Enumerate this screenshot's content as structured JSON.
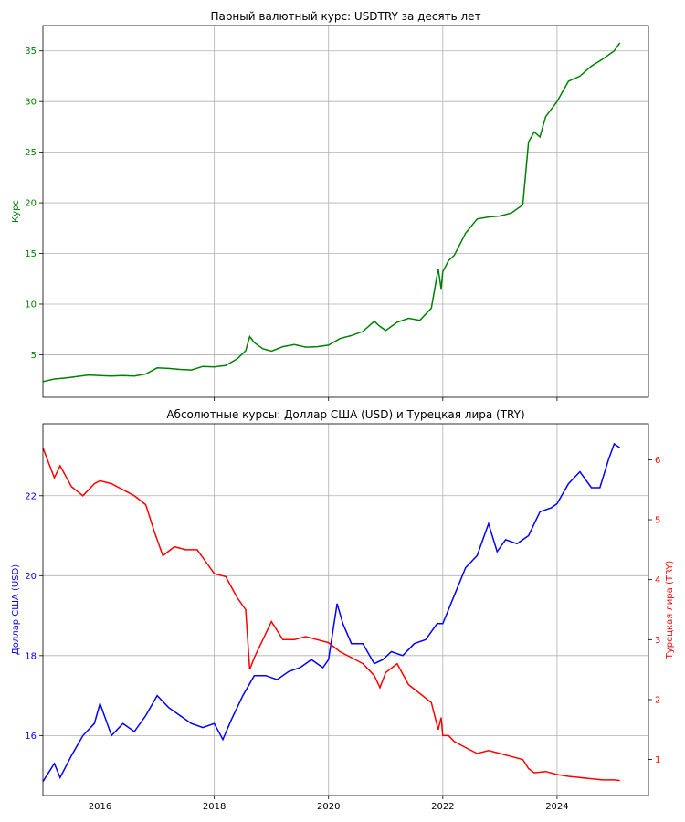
{
  "chart_data": [
    {
      "type": "line",
      "title": "Парный валютный курс: USDTRY за десять лет",
      "ylabel": "Курс",
      "xlim": [
        2015.0,
        2025.6
      ],
      "ylim": [
        0.8,
        37.5
      ],
      "yticks": [
        5,
        10,
        15,
        20,
        25,
        30,
        35
      ],
      "xticks": [
        2016,
        2018,
        2020,
        2022,
        2024
      ],
      "grid": true,
      "colors": {
        "line": "#008000",
        "ylabel": "#008000",
        "yticks": "#008000"
      },
      "series": [
        {
          "x": [
            2015.0,
            2015.2,
            2015.4,
            2015.6,
            2015.8,
            2016.0,
            2016.2,
            2016.4,
            2016.6,
            2016.8,
            2017.0,
            2017.2,
            2017.4,
            2017.6,
            2017.8,
            2018.0,
            2018.2,
            2018.4,
            2018.55,
            2018.62,
            2018.7,
            2018.85,
            2019.0,
            2019.2,
            2019.4,
            2019.6,
            2019.8,
            2020.0,
            2020.2,
            2020.4,
            2020.6,
            2020.8,
            2020.9,
            2021.0,
            2021.2,
            2021.4,
            2021.6,
            2021.8,
            2021.92,
            2021.97,
            2022.0,
            2022.1,
            2022.2,
            2022.4,
            2022.6,
            2022.8,
            2023.0,
            2023.2,
            2023.4,
            2023.5,
            2023.6,
            2023.7,
            2023.8,
            2024.0,
            2024.2,
            2024.4,
            2024.6,
            2024.8,
            2025.0,
            2025.1
          ],
          "y": [
            2.35,
            2.6,
            2.7,
            2.85,
            3.0,
            2.95,
            2.9,
            2.95,
            2.9,
            3.1,
            3.7,
            3.65,
            3.55,
            3.5,
            3.85,
            3.8,
            3.95,
            4.6,
            5.4,
            6.8,
            6.2,
            5.6,
            5.35,
            5.8,
            6.0,
            5.75,
            5.8,
            5.95,
            6.6,
            6.9,
            7.3,
            8.3,
            7.8,
            7.4,
            8.2,
            8.6,
            8.4,
            9.6,
            13.5,
            11.5,
            13.2,
            14.3,
            14.8,
            17.0,
            18.4,
            18.6,
            18.7,
            19.0,
            19.8,
            26.0,
            27.0,
            26.5,
            28.5,
            30.0,
            32.0,
            32.5,
            33.5,
            34.2,
            35.0,
            35.8
          ]
        }
      ]
    },
    {
      "type": "line",
      "title": "Абсолютные курсы: Доллар США (USD) и Турецкая лира (TRY)",
      "ylabel": "Доллар США (USD)",
      "ylabel_right": "Турецкая лира (TRY)",
      "xlim": [
        2015.0,
        2025.6
      ],
      "ylim": [
        14.5,
        23.8
      ],
      "ylim_right": [
        0.4,
        6.6
      ],
      "yticks": [
        16,
        18,
        20,
        22
      ],
      "yticks_right": [
        1,
        2,
        3,
        4,
        5,
        6
      ],
      "xticks": [
        2016,
        2018,
        2020,
        2022,
        2024
      ],
      "grid": true,
      "colors": {
        "usd": "#0000ff",
        "try": "#ff0000"
      },
      "series": [
        {
          "axis": "left",
          "x": [
            2015.0,
            2015.2,
            2015.3,
            2015.5,
            2015.7,
            2015.9,
            2016.0,
            2016.2,
            2016.4,
            2016.6,
            2016.8,
            2017.0,
            2017.2,
            2017.4,
            2017.6,
            2017.8,
            2018.0,
            2018.15,
            2018.3,
            2018.5,
            2018.7,
            2018.9,
            2019.1,
            2019.3,
            2019.5,
            2019.7,
            2019.9,
            2020.0,
            2020.15,
            2020.25,
            2020.4,
            2020.6,
            2020.8,
            2020.95,
            2021.1,
            2021.3,
            2021.5,
            2021.7,
            2021.9,
            2022.0,
            2022.2,
            2022.4,
            2022.6,
            2022.8,
            2022.95,
            2023.1,
            2023.3,
            2023.5,
            2023.7,
            2023.9,
            2024.0,
            2024.2,
            2024.4,
            2024.6,
            2024.75,
            2024.9,
            2025.0,
            2025.1
          ],
          "y": [
            14.85,
            15.3,
            14.95,
            15.5,
            16.0,
            16.3,
            16.8,
            16.0,
            16.3,
            16.1,
            16.5,
            17.0,
            16.7,
            16.5,
            16.3,
            16.2,
            16.3,
            15.9,
            16.4,
            17.0,
            17.5,
            17.5,
            17.4,
            17.6,
            17.7,
            17.9,
            17.7,
            17.9,
            19.3,
            18.8,
            18.3,
            18.3,
            17.8,
            17.9,
            18.1,
            18.0,
            18.3,
            18.4,
            18.8,
            18.8,
            19.5,
            20.2,
            20.5,
            21.3,
            20.6,
            20.9,
            20.8,
            21.0,
            21.6,
            21.7,
            21.8,
            22.3,
            22.6,
            22.2,
            22.2,
            22.9,
            23.3,
            23.2
          ]
        },
        {
          "axis": "right",
          "x": [
            2015.0,
            2015.2,
            2015.3,
            2015.5,
            2015.7,
            2015.9,
            2016.0,
            2016.2,
            2016.4,
            2016.6,
            2016.8,
            2016.95,
            2017.1,
            2017.3,
            2017.5,
            2017.7,
            2017.85,
            2018.0,
            2018.2,
            2018.4,
            2018.55,
            2018.62,
            2018.7,
            2018.85,
            2019.0,
            2019.2,
            2019.4,
            2019.6,
            2019.8,
            2020.0,
            2020.2,
            2020.4,
            2020.6,
            2020.8,
            2020.9,
            2021.0,
            2021.2,
            2021.4,
            2021.6,
            2021.8,
            2021.92,
            2021.97,
            2022.0,
            2022.1,
            2022.2,
            2022.4,
            2022.6,
            2022.8,
            2023.0,
            2023.2,
            2023.4,
            2023.5,
            2023.6,
            2023.8,
            2024.0,
            2024.2,
            2024.4,
            2024.6,
            2024.8,
            2025.0,
            2025.1
          ],
          "y": [
            6.2,
            5.7,
            5.9,
            5.55,
            5.4,
            5.6,
            5.65,
            5.6,
            5.5,
            5.4,
            5.25,
            4.8,
            4.4,
            4.55,
            4.5,
            4.5,
            4.3,
            4.1,
            4.05,
            3.7,
            3.5,
            2.5,
            2.7,
            3.0,
            3.3,
            3.0,
            3.0,
            3.05,
            3.0,
            2.95,
            2.8,
            2.7,
            2.6,
            2.4,
            2.2,
            2.45,
            2.6,
            2.25,
            2.1,
            1.95,
            1.5,
            1.7,
            1.4,
            1.4,
            1.3,
            1.2,
            1.1,
            1.15,
            1.1,
            1.05,
            1.0,
            0.85,
            0.78,
            0.8,
            0.75,
            0.72,
            0.7,
            0.68,
            0.66,
            0.66,
            0.65
          ]
        }
      ]
    }
  ]
}
